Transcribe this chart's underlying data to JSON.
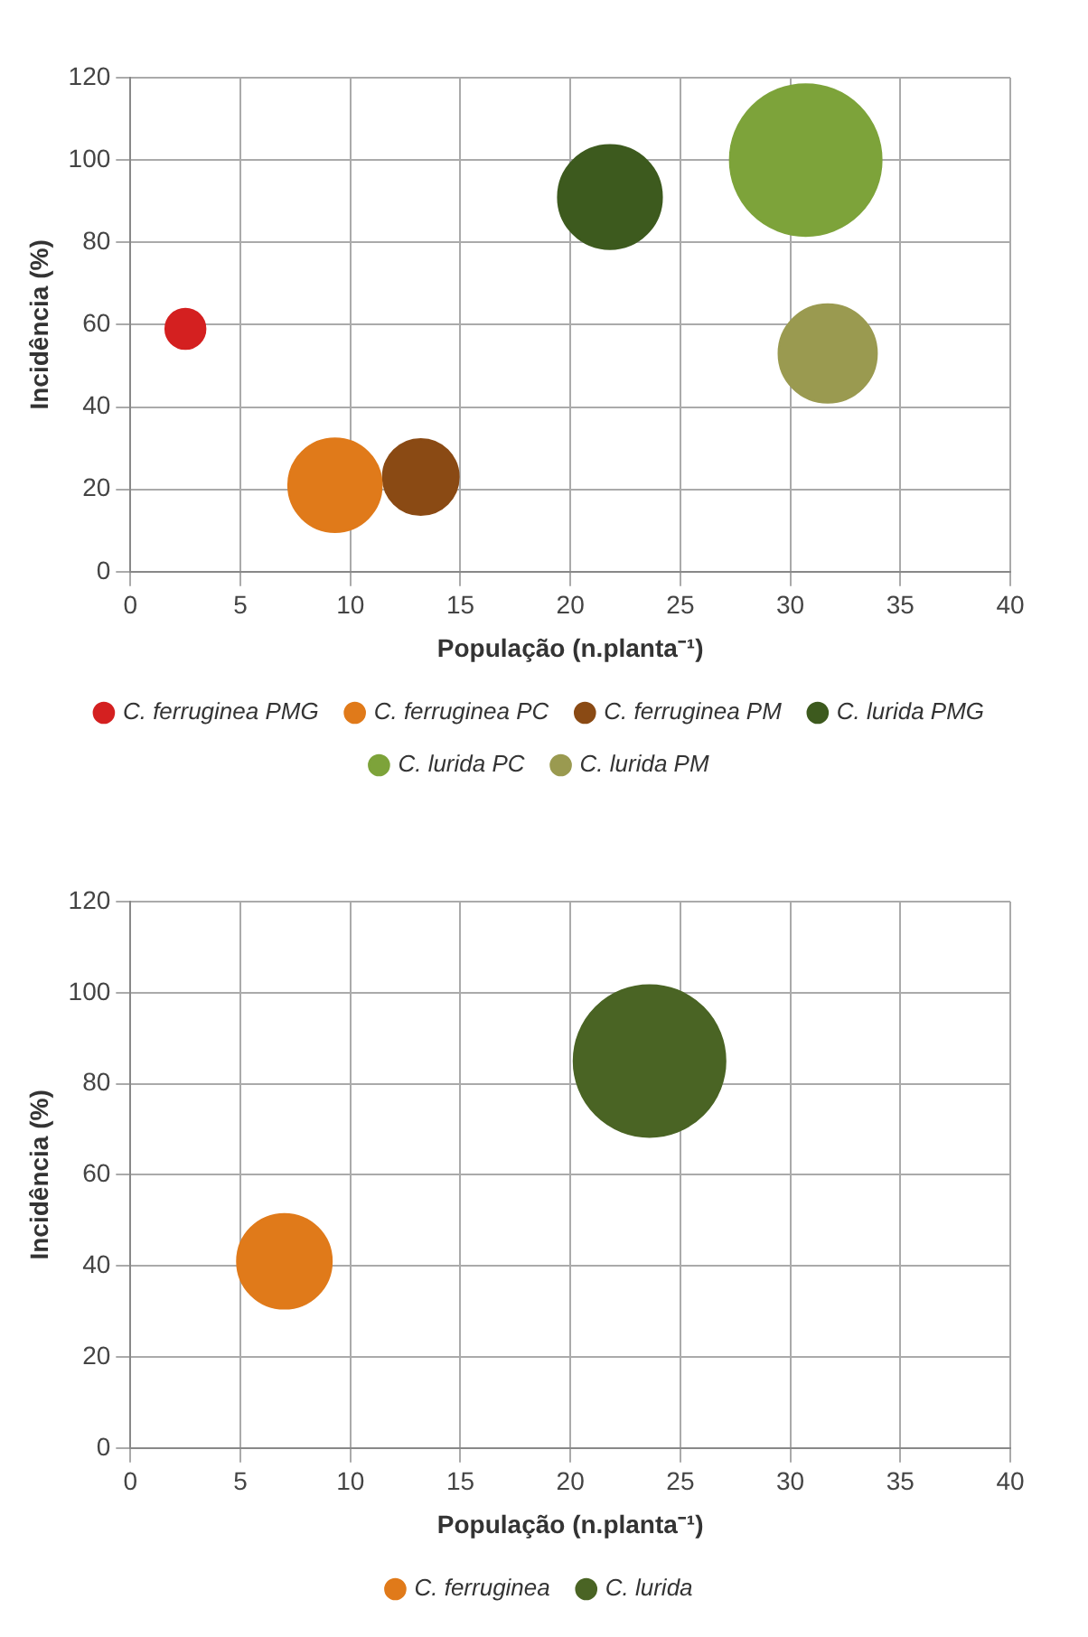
{
  "chart_data": [
    {
      "type": "bubble",
      "xlabel": "População (n.planta⁻¹)",
      "ylabel": "Incidência (%)",
      "xlim": [
        0,
        40
      ],
      "xticks": [
        0,
        5,
        10,
        15,
        20,
        25,
        30,
        35,
        40
      ],
      "ylim": [
        0,
        120
      ],
      "yticks": [
        0,
        20,
        40,
        60,
        80,
        100,
        120
      ],
      "grid": true,
      "legend": "bottom",
      "series": [
        {
          "name": "C. ferruginea PMG",
          "color": "#d42020",
          "x": [
            2.5
          ],
          "values": [
            59
          ],
          "sizes": [
            0.07
          ]
        },
        {
          "name": "C. ferruginea PC",
          "color": "#e07a1a",
          "x": [
            9.3
          ],
          "values": [
            21
          ],
          "sizes": [
            0.38
          ]
        },
        {
          "name": "C. ferruginea PM",
          "color": "#8a4a14",
          "x": [
            13.2
          ],
          "values": [
            23
          ],
          "sizes": [
            0.25
          ]
        },
        {
          "name": "C. lurida PMG",
          "color": "#3d5a1e",
          "x": [
            21.8
          ],
          "values": [
            91
          ],
          "sizes": [
            0.47
          ]
        },
        {
          "name": "C. lurida PC",
          "color": "#7da33a",
          "x": [
            30.7
          ],
          "values": [
            100
          ],
          "sizes": [
            1
          ]
        },
        {
          "name": "C. lurida PM",
          "color": "#9a9a50",
          "x": [
            31.7
          ],
          "values": [
            53
          ],
          "sizes": [
            0.42
          ]
        }
      ]
    },
    {
      "type": "bubble",
      "xlabel": "População (n.planta⁻¹)",
      "ylabel": "Incidência (%)",
      "xlim": [
        0,
        40
      ],
      "xticks": [
        0,
        5,
        10,
        15,
        20,
        25,
        30,
        35,
        40
      ],
      "ylim": [
        0,
        120
      ],
      "yticks": [
        0,
        20,
        40,
        60,
        80,
        100,
        120
      ],
      "grid": true,
      "legend": "bottom",
      "series": [
        {
          "name": "C. ferruginea",
          "color": "#e07a1a",
          "x": [
            7
          ],
          "values": [
            41
          ],
          "sizes": [
            0.39
          ]
        },
        {
          "name": "C. lurida",
          "color": "#4a6424",
          "x": [
            23.6
          ],
          "values": [
            85
          ],
          "sizes": [
            1
          ]
        }
      ]
    }
  ]
}
